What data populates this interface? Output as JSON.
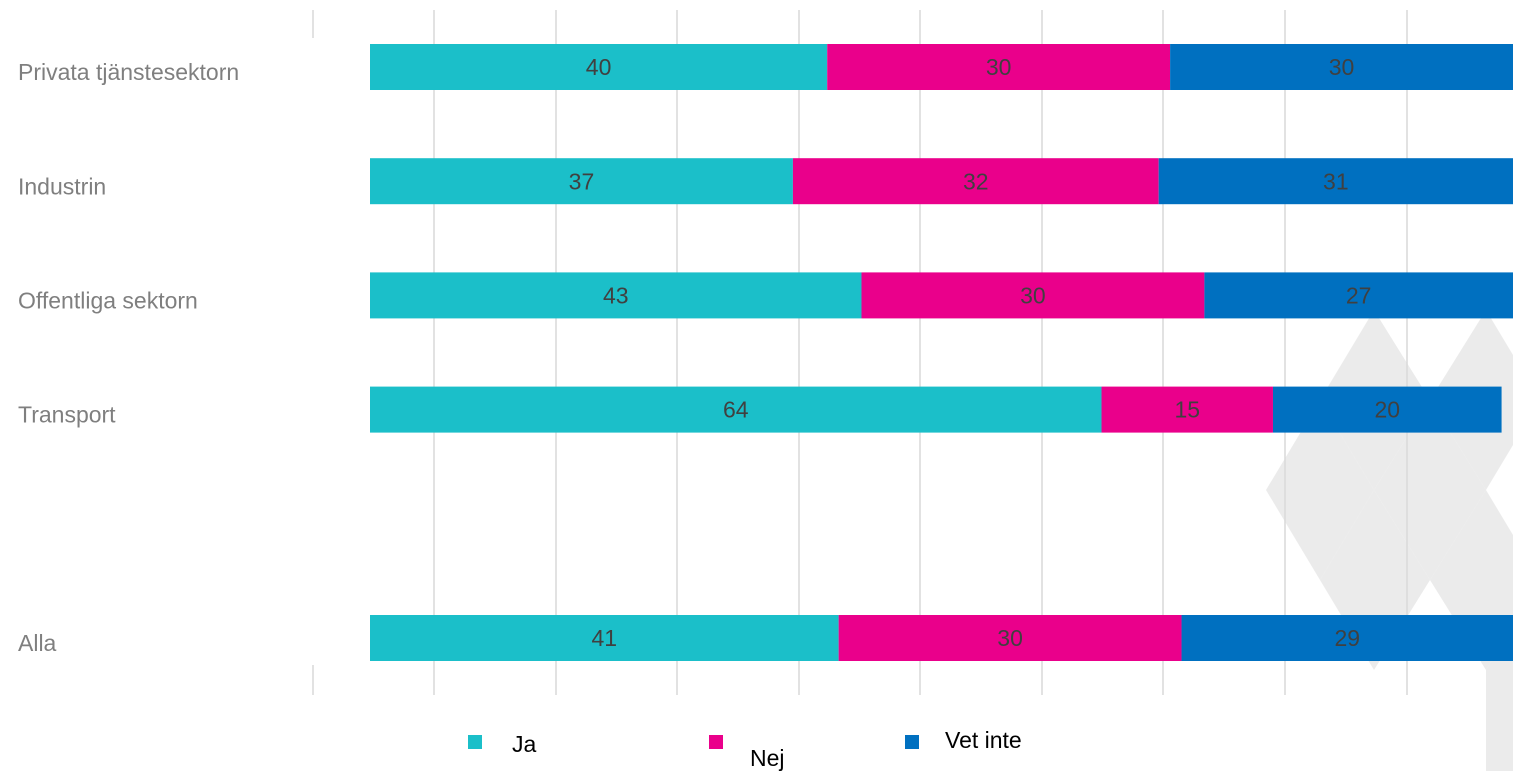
{
  "chart_data": {
    "type": "stacked_bar_horizontal",
    "categories": [
      "Privata tjänstesektorn",
      "Industrin",
      "Offentliga sektorn",
      "Transport",
      null,
      "Alla"
    ],
    "series": [
      {
        "name": "Ja",
        "color": "#1bbfc9",
        "values": [
          40,
          37,
          43,
          64,
          null,
          41
        ]
      },
      {
        "name": "Nej",
        "color": "#ea008b",
        "values": [
          30,
          32,
          30,
          15,
          null,
          30
        ]
      },
      {
        "name": "Vet inte",
        "color": "#0070c0",
        "values": [
          30,
          31,
          27,
          20,
          null,
          29
        ]
      }
    ],
    "xlim": [
      0,
      100
    ],
    "legend": "bottom"
  }
}
